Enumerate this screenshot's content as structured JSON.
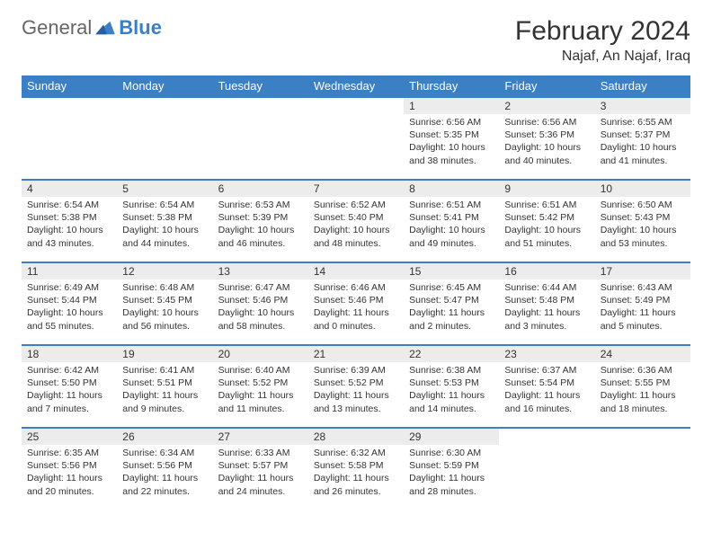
{
  "brand": {
    "part1": "General",
    "part2": "Blue"
  },
  "title": "February 2024",
  "location": "Najaf, An Najaf, Iraq",
  "colors": {
    "accent": "#3b7fc4",
    "dayBg": "#ececec",
    "text": "#333333",
    "bg": "#ffffff"
  },
  "headers": [
    "Sunday",
    "Monday",
    "Tuesday",
    "Wednesday",
    "Thursday",
    "Friday",
    "Saturday"
  ],
  "weeks": [
    [
      null,
      null,
      null,
      null,
      {
        "d": "1",
        "sr": "6:56 AM",
        "ss": "5:35 PM",
        "dl": "10 hours and 38 minutes."
      },
      {
        "d": "2",
        "sr": "6:56 AM",
        "ss": "5:36 PM",
        "dl": "10 hours and 40 minutes."
      },
      {
        "d": "3",
        "sr": "6:55 AM",
        "ss": "5:37 PM",
        "dl": "10 hours and 41 minutes."
      }
    ],
    [
      {
        "d": "4",
        "sr": "6:54 AM",
        "ss": "5:38 PM",
        "dl": "10 hours and 43 minutes."
      },
      {
        "d": "5",
        "sr": "6:54 AM",
        "ss": "5:38 PM",
        "dl": "10 hours and 44 minutes."
      },
      {
        "d": "6",
        "sr": "6:53 AM",
        "ss": "5:39 PM",
        "dl": "10 hours and 46 minutes."
      },
      {
        "d": "7",
        "sr": "6:52 AM",
        "ss": "5:40 PM",
        "dl": "10 hours and 48 minutes."
      },
      {
        "d": "8",
        "sr": "6:51 AM",
        "ss": "5:41 PM",
        "dl": "10 hours and 49 minutes."
      },
      {
        "d": "9",
        "sr": "6:51 AM",
        "ss": "5:42 PM",
        "dl": "10 hours and 51 minutes."
      },
      {
        "d": "10",
        "sr": "6:50 AM",
        "ss": "5:43 PM",
        "dl": "10 hours and 53 minutes."
      }
    ],
    [
      {
        "d": "11",
        "sr": "6:49 AM",
        "ss": "5:44 PM",
        "dl": "10 hours and 55 minutes."
      },
      {
        "d": "12",
        "sr": "6:48 AM",
        "ss": "5:45 PM",
        "dl": "10 hours and 56 minutes."
      },
      {
        "d": "13",
        "sr": "6:47 AM",
        "ss": "5:46 PM",
        "dl": "10 hours and 58 minutes."
      },
      {
        "d": "14",
        "sr": "6:46 AM",
        "ss": "5:46 PM",
        "dl": "11 hours and 0 minutes."
      },
      {
        "d": "15",
        "sr": "6:45 AM",
        "ss": "5:47 PM",
        "dl": "11 hours and 2 minutes."
      },
      {
        "d": "16",
        "sr": "6:44 AM",
        "ss": "5:48 PM",
        "dl": "11 hours and 3 minutes."
      },
      {
        "d": "17",
        "sr": "6:43 AM",
        "ss": "5:49 PM",
        "dl": "11 hours and 5 minutes."
      }
    ],
    [
      {
        "d": "18",
        "sr": "6:42 AM",
        "ss": "5:50 PM",
        "dl": "11 hours and 7 minutes."
      },
      {
        "d": "19",
        "sr": "6:41 AM",
        "ss": "5:51 PM",
        "dl": "11 hours and 9 minutes."
      },
      {
        "d": "20",
        "sr": "6:40 AM",
        "ss": "5:52 PM",
        "dl": "11 hours and 11 minutes."
      },
      {
        "d": "21",
        "sr": "6:39 AM",
        "ss": "5:52 PM",
        "dl": "11 hours and 13 minutes."
      },
      {
        "d": "22",
        "sr": "6:38 AM",
        "ss": "5:53 PM",
        "dl": "11 hours and 14 minutes."
      },
      {
        "d": "23",
        "sr": "6:37 AM",
        "ss": "5:54 PM",
        "dl": "11 hours and 16 minutes."
      },
      {
        "d": "24",
        "sr": "6:36 AM",
        "ss": "5:55 PM",
        "dl": "11 hours and 18 minutes."
      }
    ],
    [
      {
        "d": "25",
        "sr": "6:35 AM",
        "ss": "5:56 PM",
        "dl": "11 hours and 20 minutes."
      },
      {
        "d": "26",
        "sr": "6:34 AM",
        "ss": "5:56 PM",
        "dl": "11 hours and 22 minutes."
      },
      {
        "d": "27",
        "sr": "6:33 AM",
        "ss": "5:57 PM",
        "dl": "11 hours and 24 minutes."
      },
      {
        "d": "28",
        "sr": "6:32 AM",
        "ss": "5:58 PM",
        "dl": "11 hours and 26 minutes."
      },
      {
        "d": "29",
        "sr": "6:30 AM",
        "ss": "5:59 PM",
        "dl": "11 hours and 28 minutes."
      },
      null,
      null
    ]
  ],
  "labels": {
    "sunrise": "Sunrise:",
    "sunset": "Sunset:",
    "daylight": "Daylight:"
  }
}
